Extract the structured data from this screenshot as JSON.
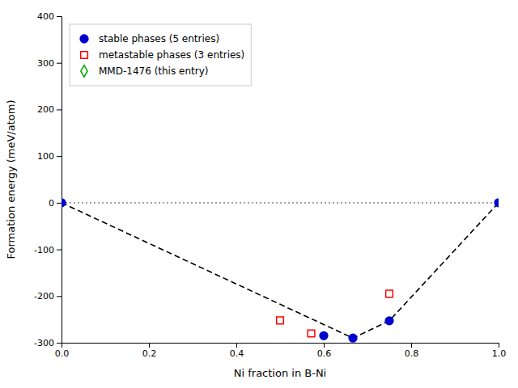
{
  "chart_data": {
    "type": "scatter",
    "xlabel": "Ni fraction in B-Ni",
    "ylabel": "Formation energy (meV/atom)",
    "xlim": [
      0.0,
      1.0
    ],
    "ylim": [
      -300,
      400
    ],
    "xticks": [
      {
        "value": 0.0,
        "label": "0.0"
      },
      0.2,
      0.4,
      0.6,
      0.8,
      {
        "value": 1.0,
        "label": "1.0"
      }
    ],
    "yticks": [
      -300,
      -200,
      -100,
      0,
      100,
      200,
      300,
      400
    ],
    "grid": false,
    "legend": "upper-left",
    "series": [
      {
        "name": "stable phases (5 entries)",
        "type": "scatter",
        "marker": "circle",
        "color": "#0000cc",
        "x": [
          0.0,
          0.6,
          0.6667,
          0.75,
          1.0
        ],
        "values": [
          0.0,
          -285.0,
          -290.0,
          -253.0,
          0.0
        ]
      },
      {
        "name": "metastable phases (3 entries)",
        "type": "scatter",
        "marker": "square-open",
        "color": "#ff0000",
        "x": [
          0.5,
          0.5714,
          0.75
        ],
        "values": [
          -252.0,
          -280.0,
          -195.0
        ]
      },
      {
        "name": "MMD-1476 (this entry)",
        "type": "scatter",
        "marker": "diamond-open",
        "color": "#00aa00",
        "x": [],
        "values": []
      },
      {
        "type": "line",
        "line_style": "dashed",
        "color": "#000000",
        "x": [
          0.0,
          0.6667,
          0.75,
          1.0
        ],
        "values": [
          0.0,
          -290.0,
          -253.0,
          0.0
        ]
      },
      {
        "type": "line",
        "line_style": "dotted",
        "color": "#999999",
        "x": [
          0.0,
          1.0
        ],
        "values": [
          0,
          0
        ]
      }
    ]
  }
}
